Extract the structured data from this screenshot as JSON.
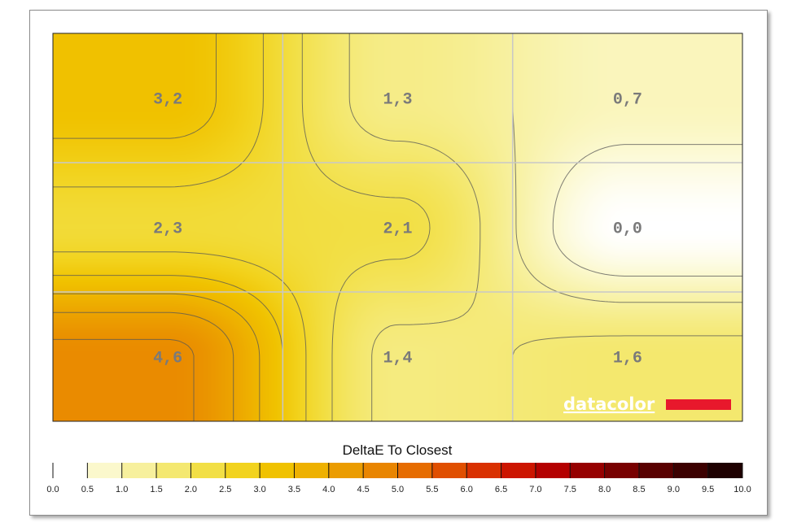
{
  "chart_data": {
    "type": "heatmap",
    "rows": 3,
    "cols": 3,
    "values": [
      [
        3.2,
        1.3,
        0.7
      ],
      [
        2.3,
        2.1,
        0.0
      ],
      [
        4.6,
        1.4,
        1.6
      ]
    ],
    "cell_labels": [
      [
        "3,2",
        "1,3",
        "0,7"
      ],
      [
        "2,3",
        "2,1",
        "0,0"
      ],
      [
        "4,6",
        "1,4",
        "1,6"
      ]
    ],
    "colorbar": {
      "title": "DeltaE To Closest",
      "range": [
        0,
        10
      ],
      "ticks": [
        "0.0",
        "0.5",
        "1.0",
        "1.5",
        "2.0",
        "2.5",
        "3.0",
        "3.5",
        "4.0",
        "4.5",
        "5.0",
        "5.5",
        "6.0",
        "6.5",
        "7.0",
        "7.5",
        "8.0",
        "8.5",
        "9.0",
        "9.5",
        "10.0"
      ],
      "colors": [
        "#ffffff",
        "#fbf8cc",
        "#f7f09d",
        "#f4e870",
        "#f2df45",
        "#f2d31e",
        "#f0c200",
        "#eeb100",
        "#eb9c00",
        "#e98500",
        "#e66c00",
        "#e04f00",
        "#d93000",
        "#cc1500",
        "#b40000",
        "#960000",
        "#780000",
        "#590000",
        "#3c0000",
        "#1e0000"
      ]
    },
    "contour_levels": [
      0.5,
      1.0,
      1.5,
      2.0,
      2.5,
      3.0,
      3.5,
      4.0,
      4.5
    ],
    "grid": true
  },
  "logo": {
    "text": "datacolor",
    "bar_color": "#e8182c"
  }
}
